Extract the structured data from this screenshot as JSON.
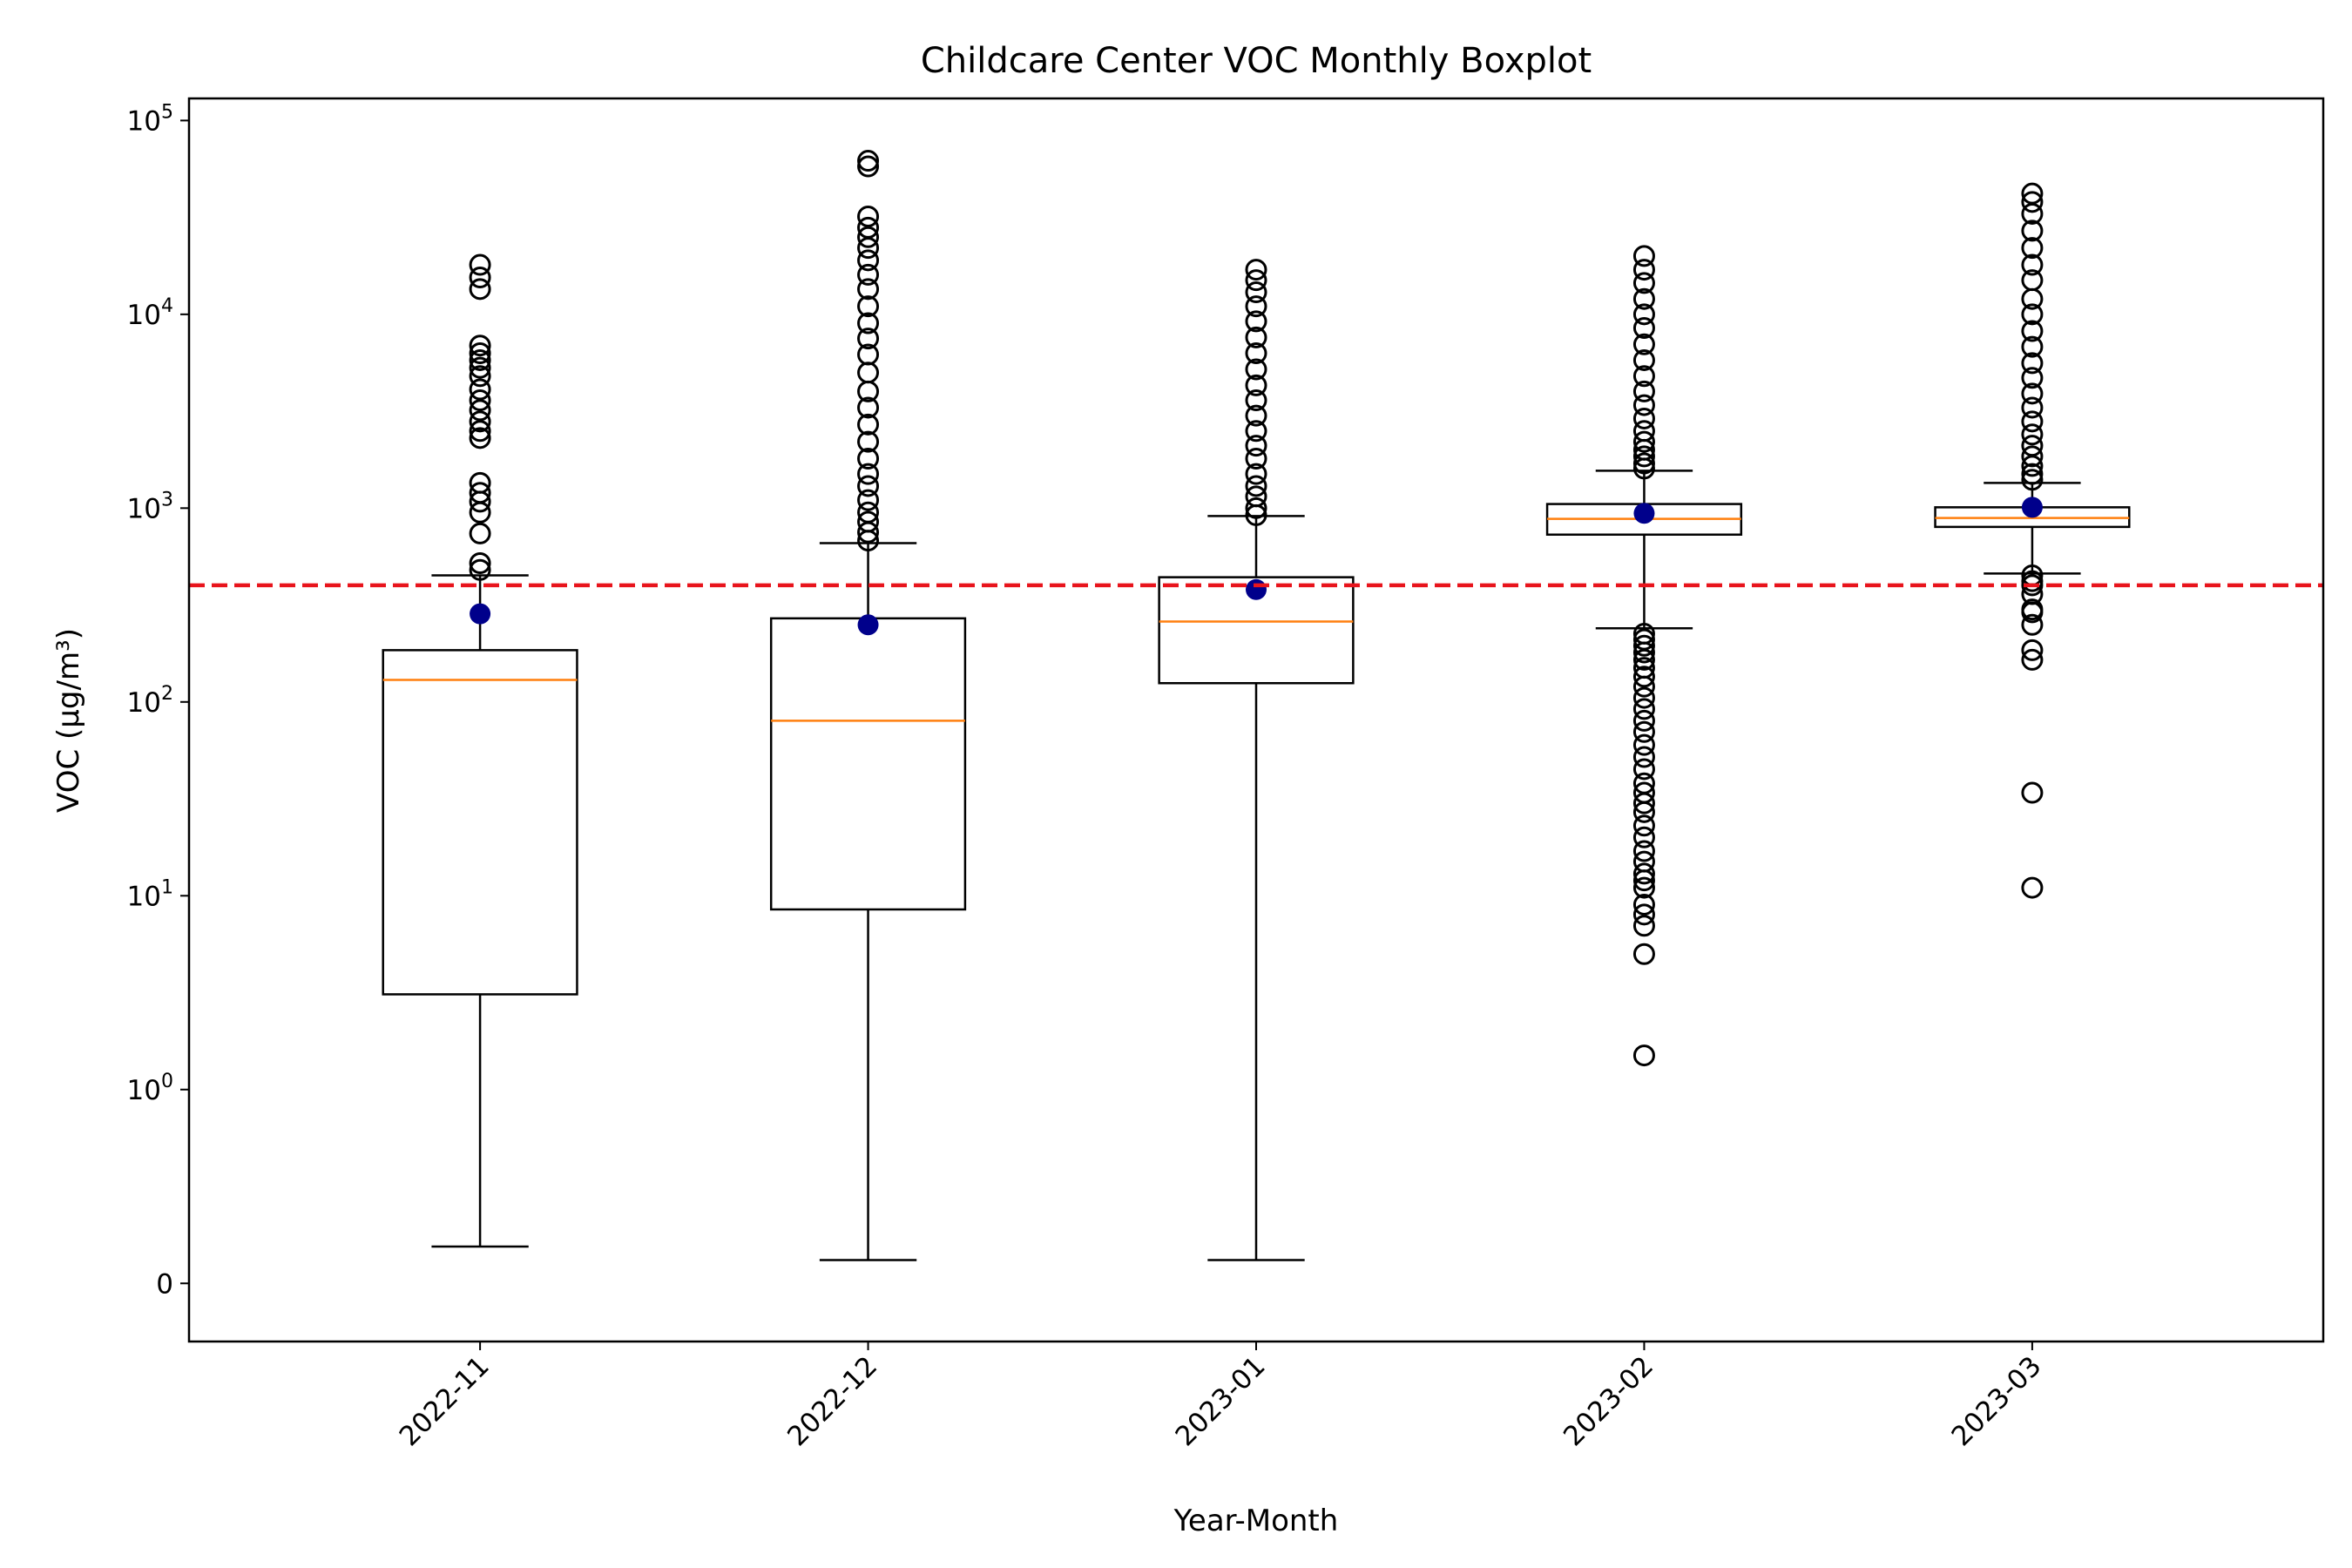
{
  "chart_data": {
    "type": "box",
    "title": "Childcare Center VOC Monthly Boxplot",
    "xlabel": "Year-Month",
    "ylabel": "VOC (µg/m³)",
    "y_scale": "symlog",
    "ylim": [
      -0.3,
      130000
    ],
    "y_ticks": [
      {
        "value": 0,
        "base": "0",
        "exp": ""
      },
      {
        "value": 1,
        "base": "10",
        "exp": "0"
      },
      {
        "value": 10,
        "base": "10",
        "exp": "1"
      },
      {
        "value": 100,
        "base": "10",
        "exp": "2"
      },
      {
        "value": 1000,
        "base": "10",
        "exp": "3"
      },
      {
        "value": 10000,
        "base": "10",
        "exp": "4"
      },
      {
        "value": 100000,
        "base": "10",
        "exp": "5"
      }
    ],
    "categories": [
      "2022-11",
      "2022-12",
      "2023-01",
      "2023-02",
      "2023-03"
    ],
    "threshold": {
      "value": 400,
      "color": "#e8141c"
    },
    "colors": {
      "box": "#000000",
      "median": "#ff7f0e",
      "mean": "#00008b",
      "flier": "#000000"
    },
    "boxes": [
      {
        "category": "2022-11",
        "whisker_low": 0.19,
        "q1": 3.1,
        "median": 130,
        "q3": 185,
        "whisker_high": 450,
        "mean": 285,
        "fliers": [
          480,
          520,
          740,
          950,
          1080,
          1200,
          1350,
          2300,
          2500,
          2800,
          3200,
          3600,
          4100,
          4800,
          5300,
          5800,
          6300,
          6900,
          13500,
          15500,
          18000
        ]
      },
      {
        "category": "2022-12",
        "whisker_low": 0.12,
        "q1": 8.5,
        "median": 80,
        "q3": 270,
        "whisker_high": 660,
        "mean": 250,
        "fliers": [
          680,
          750,
          850,
          950,
          1100,
          1300,
          1500,
          1800,
          2200,
          2700,
          3300,
          4000,
          5000,
          6200,
          7500,
          9000,
          11000,
          13500,
          16000,
          19000,
          22000,
          25000,
          28000,
          32000,
          58000,
          62000
        ]
      },
      {
        "category": "2023-01",
        "whisker_low": 0.12,
        "q1": 125,
        "median": 260,
        "q3": 440,
        "whisker_high": 910,
        "mean": 380,
        "fliers": [
          920,
          1000,
          1150,
          1300,
          1500,
          1800,
          2100,
          2500,
          3000,
          3600,
          4300,
          5200,
          6300,
          7600,
          9200,
          11000,
          13000,
          15000,
          17000
        ]
      },
      {
        "category": "2023-02",
        "whisker_low": 240,
        "q1": 730,
        "median": 880,
        "q3": 1050,
        "whisker_high": 1560,
        "mean": 940,
        "fliers": [
          1.5,
          5,
          7,
          8,
          9,
          11,
          12,
          13,
          15,
          17,
          20,
          23,
          27,
          30,
          34,
          38,
          45,
          52,
          60,
          70,
          80,
          92,
          105,
          120,
          135,
          150,
          165,
          180,
          195,
          210,
          225,
          1600,
          1700,
          1850,
          2000,
          2200,
          2500,
          2900,
          3400,
          4000,
          4800,
          5800,
          7000,
          8500,
          10000,
          12000,
          14500,
          17000,
          20000
        ]
      },
      {
        "category": "2023-03",
        "whisker_low": 460,
        "q1": 800,
        "median": 890,
        "q3": 1010,
        "whisker_high": 1350,
        "mean": 1010,
        "fliers": [
          11,
          34,
          165,
          185,
          250,
          290,
          300,
          360,
          400,
          420,
          450,
          1400,
          1500,
          1650,
          1850,
          2100,
          2400,
          2800,
          3300,
          3900,
          4700,
          5600,
          6800,
          8200,
          10000,
          12000,
          15000,
          18000,
          22000,
          27000,
          33000,
          38000,
          42000
        ]
      }
    ]
  }
}
